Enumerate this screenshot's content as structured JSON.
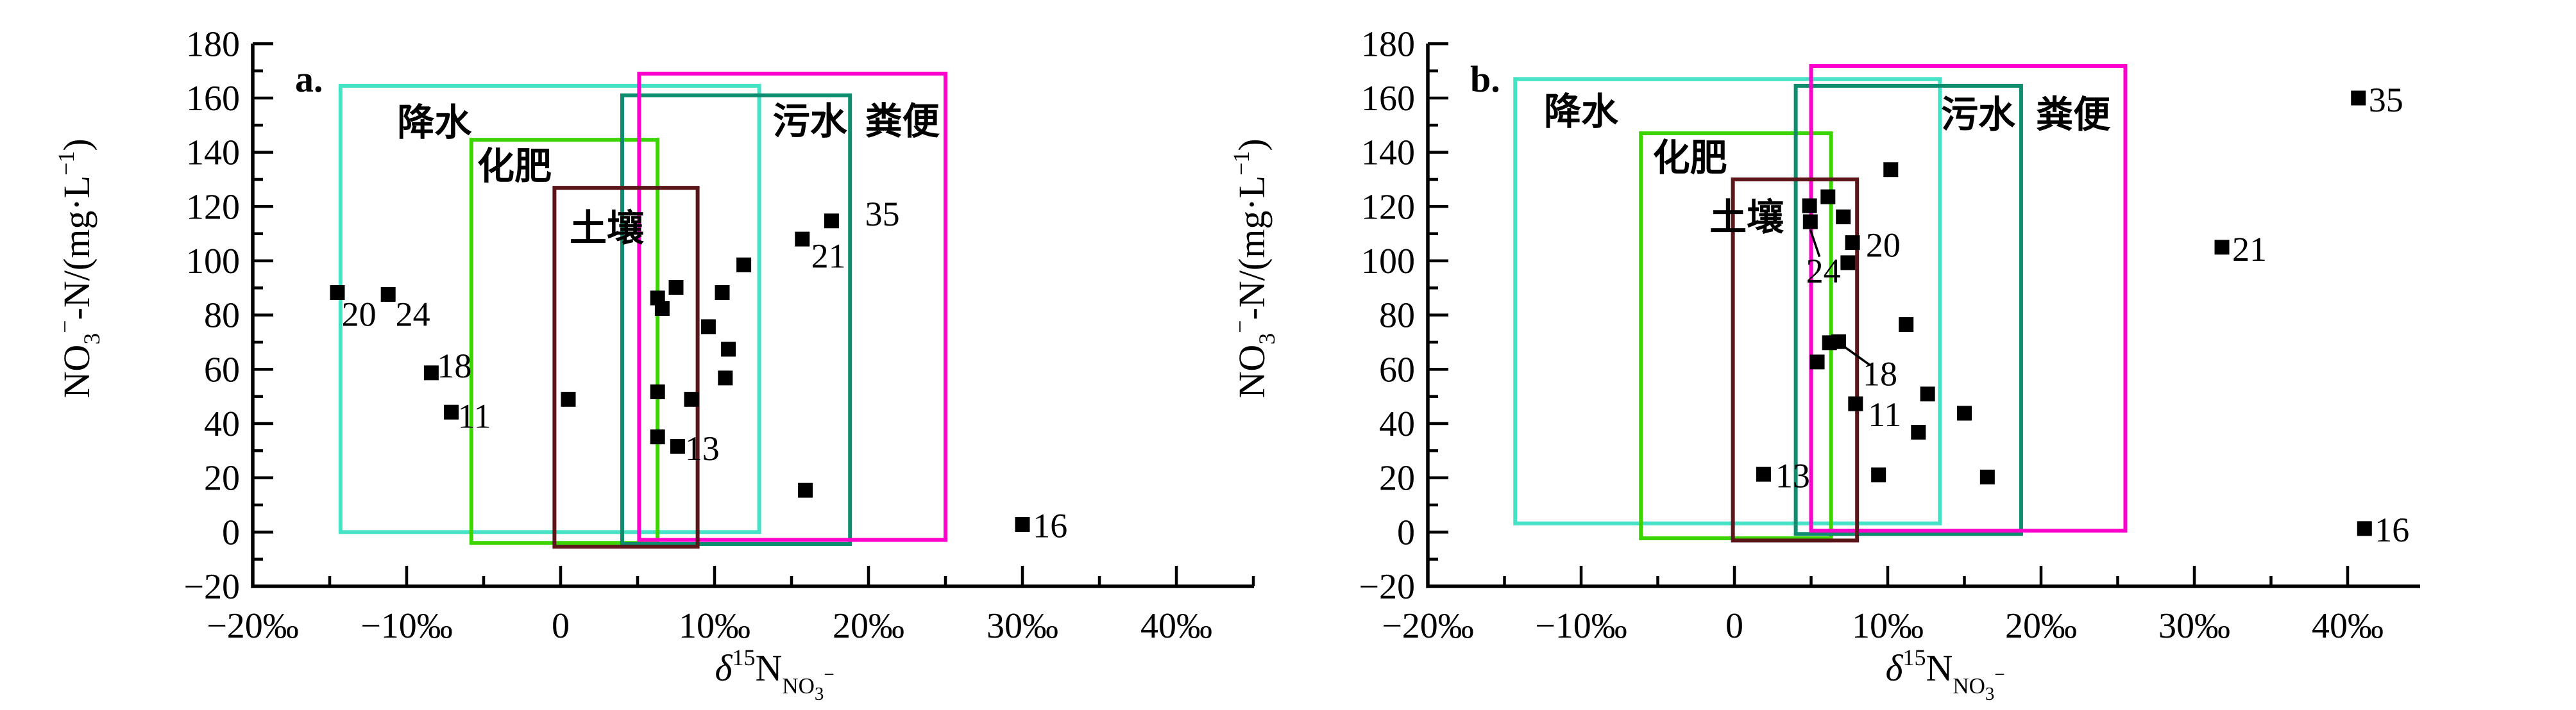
{
  "figure": {
    "background": "#ffffff",
    "point_color": "#000000",
    "axis_color": "#000000"
  },
  "chart_data": [
    {
      "type": "scatter",
      "panel_label": "a.",
      "xlabel_parts": [
        {
          "t": "δ",
          "s": 1.0,
          "dy": 0,
          "italic": true
        },
        {
          "t": "15",
          "s": 0.62,
          "dy": -24
        },
        {
          "t": "N",
          "s": 1.0,
          "dy": 24
        },
        {
          "t": "NO",
          "s": 0.6,
          "dy": 20
        },
        {
          "t": "3",
          "s": 0.5,
          "dy": 10
        },
        {
          "t": "−",
          "s": 0.5,
          "dy": -30
        }
      ],
      "ylabel_parts": [
        {
          "t": "NO",
          "s": 1.0,
          "dy": 0
        },
        {
          "t": "3",
          "s": 0.62,
          "dy": 16
        },
        {
          "t": "−",
          "s": 0.62,
          "dy": -42
        },
        {
          "t": "-N/(mg·L",
          "s": 1.0,
          "dy": 26
        },
        {
          "t": "−1",
          "s": 0.62,
          "dy": -24
        },
        {
          "t": ")",
          "s": 1.0,
          "dy": 24
        }
      ],
      "xlim": [
        -20,
        45
      ],
      "ylim": [
        -20,
        180
      ],
      "x_ticks": [
        {
          "v": -20,
          "label": "−20‰"
        },
        {
          "v": -10,
          "label": "−10‰"
        },
        {
          "v": 0,
          "label": "0"
        },
        {
          "v": 10,
          "label": "10‰"
        },
        {
          "v": 20,
          "label": "20‰"
        },
        {
          "v": 30,
          "label": "30‰"
        },
        {
          "v": 40,
          "label": "40‰"
        }
      ],
      "y_ticks": [
        {
          "v": -20,
          "label": "−20"
        },
        {
          "v": 0,
          "label": "0"
        },
        {
          "v": 20,
          "label": "20"
        },
        {
          "v": 40,
          "label": "40"
        },
        {
          "v": 60,
          "label": "60"
        },
        {
          "v": 80,
          "label": "80"
        },
        {
          "v": 100,
          "label": "100"
        },
        {
          "v": 120,
          "label": "120"
        },
        {
          "v": 140,
          "label": "140"
        },
        {
          "v": 160,
          "label": "160"
        },
        {
          "v": 180,
          "label": "180"
        }
      ],
      "x_minor_step": 5,
      "y_minor_step": 10,
      "boxes": [
        {
          "name": "precipitation",
          "label": "降水",
          "color": "#45E2C6",
          "x": [
            -14.3,
            12.9
          ],
          "y": [
            0,
            164.5
          ],
          "label_pos": [
            -8.2,
            151
          ]
        },
        {
          "name": "fertilizer",
          "label": "化肥",
          "color": "#3BD400",
          "x": [
            -5.8,
            6.3
          ],
          "y": [
            -4.0,
            144.6
          ],
          "label_pos": [
            -3.0,
            135
          ]
        },
        {
          "name": "sewage",
          "label": "污水",
          "color": "#0E8C6E",
          "x": [
            4.0,
            18.8
          ],
          "y": [
            -4.4,
            161.0
          ],
          "label_pos": [
            16.2,
            151.5
          ]
        },
        {
          "name": "manure",
          "label": "粪便",
          "color": "#FF00CC",
          "x": [
            5.1,
            25.0
          ],
          "y": [
            -2.9,
            169.0
          ],
          "label_pos": [
            22.2,
            151.5
          ]
        },
        {
          "name": "soil",
          "label": "土壤",
          "color": "#5C1518",
          "x": [
            -0.4,
            8.9
          ],
          "y": [
            -5.4,
            126.9
          ],
          "label_pos": [
            3.0,
            112
          ]
        }
      ],
      "points": [
        {
          "x": -14.5,
          "y": 88.3,
          "label": "20",
          "label_pos": [
            -13.1,
            80.5
          ]
        },
        {
          "x": -11.2,
          "y": 87.6,
          "label": "24",
          "label_pos": [
            -9.6,
            80.5
          ]
        },
        {
          "x": -8.4,
          "y": 58.7,
          "label": "18",
          "label_pos": [
            -6.9,
            61.5
          ]
        },
        {
          "x": -7.1,
          "y": 44.2,
          "label": "11",
          "label_pos": [
            -5.6,
            43.0
          ]
        },
        {
          "x": 0.5,
          "y": 48.9
        },
        {
          "x": 11.9,
          "y": 98.5
        },
        {
          "x": 7.5,
          "y": 90.2
        },
        {
          "x": 6.3,
          "y": 86.3
        },
        {
          "x": 6.6,
          "y": 82.4
        },
        {
          "x": 10.5,
          "y": 88.3
        },
        {
          "x": 9.6,
          "y": 75.7
        },
        {
          "x": 10.9,
          "y": 67.4
        },
        {
          "x": 10.7,
          "y": 56.8
        },
        {
          "x": 6.3,
          "y": 51.7
        },
        {
          "x": 8.5,
          "y": 48.9
        },
        {
          "x": 6.3,
          "y": 35.1
        },
        {
          "x": 7.6,
          "y": 31.6,
          "label": "13",
          "label_pos": [
            9.2,
            31.0
          ]
        },
        {
          "x": 15.9,
          "y": 15.4
        },
        {
          "x": 15.7,
          "y": 108.0,
          "label": "21",
          "label_pos": [
            17.4,
            102.0
          ]
        },
        {
          "x": 17.6,
          "y": 114.7,
          "label": "35",
          "label_pos": [
            20.9,
            117.5
          ]
        },
        {
          "x": 30.0,
          "y": 2.8,
          "label": "16",
          "label_pos": [
            31.8,
            2.5
          ]
        }
      ],
      "annotations": []
    },
    {
      "type": "scatter",
      "panel_label": "b.",
      "xlabel_parts": [
        {
          "t": "δ",
          "s": 1.0,
          "dy": 0,
          "italic": true
        },
        {
          "t": "15",
          "s": 0.62,
          "dy": -24
        },
        {
          "t": "N",
          "s": 1.0,
          "dy": 24
        },
        {
          "t": "NO",
          "s": 0.6,
          "dy": 20
        },
        {
          "t": "3",
          "s": 0.5,
          "dy": 10
        },
        {
          "t": "−",
          "s": 0.5,
          "dy": -30
        }
      ],
      "ylabel_parts": [
        {
          "t": "NO",
          "s": 1.0,
          "dy": 0
        },
        {
          "t": "3",
          "s": 0.62,
          "dy": 16
        },
        {
          "t": "−",
          "s": 0.62,
          "dy": -42
        },
        {
          "t": "-N/(mg·L",
          "s": 1.0,
          "dy": 26
        },
        {
          "t": "−1",
          "s": 0.62,
          "dy": -24
        },
        {
          "t": ")",
          "s": 1.0,
          "dy": 24
        }
      ],
      "xlim": [
        -20,
        45
      ],
      "ylim": [
        -20,
        180
      ],
      "x_ticks": [
        {
          "v": -20,
          "label": "−20‰"
        },
        {
          "v": -10,
          "label": "−10‰"
        },
        {
          "v": 0,
          "label": "0"
        },
        {
          "v": 10,
          "label": "10‰"
        },
        {
          "v": 20,
          "label": "20‰"
        },
        {
          "v": 30,
          "label": "30‰"
        },
        {
          "v": 40,
          "label": "40‰"
        }
      ],
      "y_ticks": [
        {
          "v": -20,
          "label": "−20"
        },
        {
          "v": 0,
          "label": "0"
        },
        {
          "v": 20,
          "label": "20"
        },
        {
          "v": 40,
          "label": "40"
        },
        {
          "v": 60,
          "label": "60"
        },
        {
          "v": 80,
          "label": "80"
        },
        {
          "v": 100,
          "label": "100"
        },
        {
          "v": 120,
          "label": "120"
        },
        {
          "v": 140,
          "label": "140"
        },
        {
          "v": 160,
          "label": "160"
        },
        {
          "v": 180,
          "label": "180"
        }
      ],
      "x_minor_step": 5,
      "y_minor_step": 10,
      "boxes": [
        {
          "name": "precipitation",
          "label": "降水",
          "color": "#45E2C6",
          "x": [
            -14.3,
            13.4
          ],
          "y": [
            3.2,
            167.0
          ],
          "label_pos": [
            -10.0,
            155
          ]
        },
        {
          "name": "fertilizer",
          "label": "化肥",
          "color": "#3BD400",
          "x": [
            -6.1,
            6.3
          ],
          "y": [
            -2.3,
            147.0
          ],
          "label_pos": [
            -2.9,
            138
          ]
        },
        {
          "name": "sewage",
          "label": "污水",
          "color": "#0E8C6E",
          "x": [
            4.0,
            18.7
          ],
          "y": [
            -0.7,
            164.5
          ],
          "label_pos": [
            15.9,
            154
          ]
        },
        {
          "name": "manure",
          "label": "粪便",
          "color": "#FF00CC",
          "x": [
            5.0,
            25.5
          ],
          "y": [
            0.5,
            171.8
          ],
          "label_pos": [
            22.1,
            154
          ]
        },
        {
          "name": "soil",
          "label": "土壤",
          "color": "#5C1518",
          "x": [
            -0.1,
            8.0
          ],
          "y": [
            -3.1,
            130.0
          ],
          "label_pos": [
            0.8,
            116
          ]
        }
      ],
      "points": [
        {
          "x": 10.2,
          "y": 133.6
        },
        {
          "x": 6.1,
          "y": 123.6
        },
        {
          "x": 4.9,
          "y": 120.3
        },
        {
          "x": 4.95,
          "y": 114.4
        },
        {
          "x": 7.1,
          "y": 116.2
        },
        {
          "x": 7.7,
          "y": 106.7,
          "label": "20",
          "label_pos": [
            9.7,
            106.0
          ]
        },
        {
          "x": 7.4,
          "y": 99.3
        },
        {
          "x": 11.2,
          "y": 76.5
        },
        {
          "x": 6.2,
          "y": 69.8
        },
        {
          "x": 6.8,
          "y": 70.2
        },
        {
          "x": 5.4,
          "y": 62.7
        },
        {
          "x": 12.6,
          "y": 50.9
        },
        {
          "x": 7.9,
          "y": 47.3,
          "label": "11",
          "label_pos": [
            9.8,
            43.5
          ]
        },
        {
          "x": 15.0,
          "y": 43.8
        },
        {
          "x": 12.0,
          "y": 36.8
        },
        {
          "x": 9.4,
          "y": 21.1
        },
        {
          "x": 16.5,
          "y": 20.3
        },
        {
          "x": 1.9,
          "y": 21.3,
          "label": "13",
          "label_pos": [
            3.8,
            21.0
          ]
        },
        {
          "x": 40.7,
          "y": 160.0,
          "label": "35",
          "label_pos": [
            42.5,
            159.5
          ]
        },
        {
          "x": 31.8,
          "y": 105.0,
          "label": "21",
          "label_pos": [
            33.6,
            104.5
          ]
        },
        {
          "x": 41.1,
          "y": 1.3,
          "label": "16",
          "label_pos": [
            42.9,
            1.0
          ]
        }
      ],
      "annotations": [
        {
          "label": "24",
          "label_pos": [
            5.8,
            96.5
          ],
          "from": [
            5.55,
            101.5
          ],
          "to": [
            4.95,
            111.5
          ]
        },
        {
          "label": "18",
          "label_pos": [
            9.5,
            58.5
          ],
          "from": [
            8.85,
            61.5
          ],
          "to": [
            7.05,
            68.8
          ]
        }
      ]
    }
  ]
}
